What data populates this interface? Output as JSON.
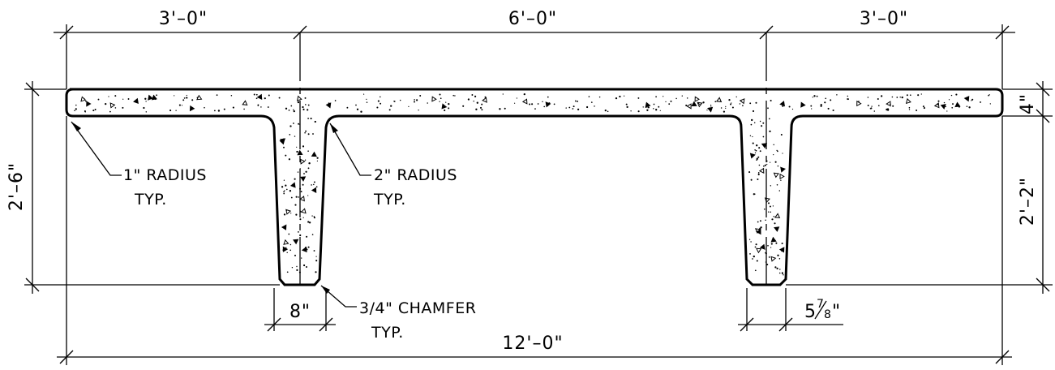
{
  "dimensions": {
    "left_overhang": "3'–0\"",
    "center_span": "6'–0\"",
    "right_overhang": "3'–0\"",
    "total_height": "2'–6\"",
    "flange_thickness": "4\"",
    "stem_height": "2'–2\"",
    "stem_width_left": "8\"",
    "stem_width_right_whole": "5",
    "stem_width_right_num": "7",
    "stem_width_right_den": "8",
    "stem_width_right_inch": "\"",
    "total_width": "12'–0\""
  },
  "notes": {
    "radius_1_line1": "1\" RADIUS",
    "radius_1_line2": "TYP.",
    "radius_2_line1": "2\" RADIUS",
    "radius_2_line2": "TYP.",
    "chamfer_line1": "3/4\" CHAMFER",
    "chamfer_line2": "TYP."
  }
}
